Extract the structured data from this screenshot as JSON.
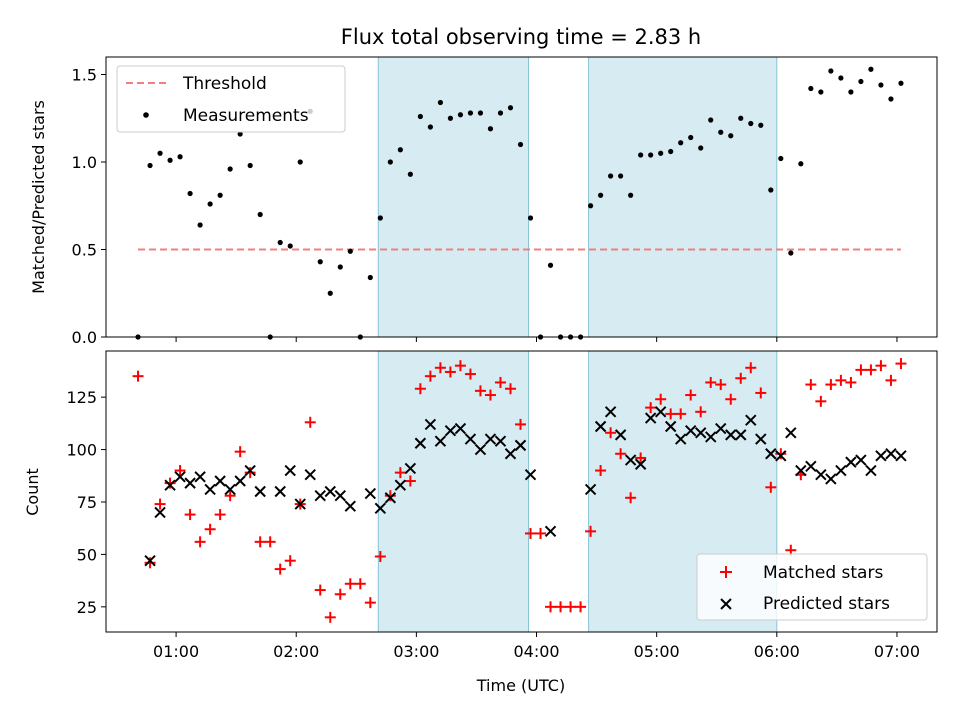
{
  "chart_data": [
    {
      "type": "scatter",
      "title": "Flux total observing time = 2.83 h",
      "ylabel": "Matched/Predicted stars",
      "xlabel": "",
      "x_unit": "time (UTC)",
      "xlim": [
        "00:25",
        "07:20"
      ],
      "ylim": [
        0,
        1.6
      ],
      "yticks": [
        "0.0",
        "0.5",
        "1.0",
        "1.5"
      ],
      "shaded_intervals": [
        [
          "02:41",
          "03:56"
        ],
        [
          "04:26",
          "06:00"
        ]
      ],
      "shade_color": "#add8e6",
      "threshold": {
        "name": "Threshold",
        "value": 0.5,
        "x_range": [
          "00:41",
          "07:02"
        ],
        "color": "#f08080"
      },
      "legend_position": "upper left",
      "series": [
        {
          "name": "Measurements",
          "color": "#000000",
          "points": [
            [
              "00:41",
              0.0
            ],
            [
              "00:47",
              0.98
            ],
            [
              "00:52",
              1.05
            ],
            [
              "00:57",
              1.01
            ],
            [
              "01:02",
              1.03
            ],
            [
              "01:07",
              0.82
            ],
            [
              "01:12",
              0.64
            ],
            [
              "01:17",
              0.76
            ],
            [
              "01:22",
              0.81
            ],
            [
              "01:27",
              0.96
            ],
            [
              "01:32",
              1.16
            ],
            [
              "01:37",
              0.98
            ],
            [
              "01:42",
              0.7
            ],
            [
              "01:47",
              0.0
            ],
            [
              "01:52",
              0.54
            ],
            [
              "01:57",
              0.52
            ],
            [
              "02:02",
              1.0
            ],
            [
              "02:07",
              1.29
            ],
            [
              "02:12",
              0.43
            ],
            [
              "02:17",
              0.25
            ],
            [
              "02:22",
              0.4
            ],
            [
              "02:27",
              0.49
            ],
            [
              "02:32",
              0.0
            ],
            [
              "02:37",
              0.34
            ],
            [
              "02:42",
              0.68
            ],
            [
              "02:47",
              1.0
            ],
            [
              "02:52",
              1.07
            ],
            [
              "02:57",
              0.93
            ],
            [
              "03:02",
              1.26
            ],
            [
              "03:07",
              1.2
            ],
            [
              "03:12",
              1.34
            ],
            [
              "03:17",
              1.25
            ],
            [
              "03:22",
              1.27
            ],
            [
              "03:27",
              1.28
            ],
            [
              "03:32",
              1.28
            ],
            [
              "03:37",
              1.19
            ],
            [
              "03:42",
              1.28
            ],
            [
              "03:47",
              1.31
            ],
            [
              "03:52",
              1.1
            ],
            [
              "03:57",
              0.68
            ],
            [
              "04:02",
              0.0
            ],
            [
              "04:07",
              0.41
            ],
            [
              "04:12",
              0.0
            ],
            [
              "04:17",
              0.0
            ],
            [
              "04:22",
              0.0
            ],
            [
              "04:27",
              0.75
            ],
            [
              "04:32",
              0.81
            ],
            [
              "04:37",
              0.92
            ],
            [
              "04:42",
              0.92
            ],
            [
              "04:47",
              0.81
            ],
            [
              "04:52",
              1.04
            ],
            [
              "04:57",
              1.04
            ],
            [
              "05:02",
              1.05
            ],
            [
              "05:07",
              1.06
            ],
            [
              "05:12",
              1.11
            ],
            [
              "05:17",
              1.14
            ],
            [
              "05:22",
              1.08
            ],
            [
              "05:27",
              1.24
            ],
            [
              "05:32",
              1.17
            ],
            [
              "05:37",
              1.15
            ],
            [
              "05:42",
              1.25
            ],
            [
              "05:47",
              1.22
            ],
            [
              "05:52",
              1.21
            ],
            [
              "05:57",
              0.84
            ],
            [
              "06:02",
              1.02
            ],
            [
              "06:07",
              0.48
            ],
            [
              "06:12",
              0.99
            ],
            [
              "06:17",
              1.42
            ],
            [
              "06:22",
              1.4
            ],
            [
              "06:27",
              1.52
            ],
            [
              "06:32",
              1.48
            ],
            [
              "06:37",
              1.4
            ],
            [
              "06:42",
              1.46
            ],
            [
              "06:47",
              1.53
            ],
            [
              "06:52",
              1.44
            ],
            [
              "06:57",
              1.36
            ],
            [
              "07:02",
              1.45
            ]
          ]
        }
      ]
    },
    {
      "type": "scatter",
      "title": "",
      "ylabel": "Count",
      "xlabel": "Time (UTC)",
      "x_unit": "time (UTC)",
      "xlim": [
        "00:25",
        "07:20"
      ],
      "ylim": [
        13,
        147
      ],
      "yticks": [
        "25",
        "50",
        "75",
        "100",
        "125"
      ],
      "xticks": [
        "01:00",
        "02:00",
        "03:00",
        "04:00",
        "05:00",
        "06:00",
        "07:00"
      ],
      "shaded_intervals": [
        [
          "02:41",
          "03:56"
        ],
        [
          "04:26",
          "06:00"
        ]
      ],
      "shade_color": "#add8e6",
      "legend_position": "lower right",
      "series": [
        {
          "name": "Matched stars",
          "color": "#ff0000",
          "marker": "+",
          "points": [
            [
              "00:41",
              135
            ],
            [
              "00:47",
              46
            ],
            [
              "00:52",
              74
            ],
            [
              "00:57",
              84
            ],
            [
              "01:02",
              90
            ],
            [
              "01:07",
              69
            ],
            [
              "01:12",
              56
            ],
            [
              "01:17",
              62
            ],
            [
              "01:22",
              69
            ],
            [
              "01:27",
              78
            ],
            [
              "01:32",
              99
            ],
            [
              "01:37",
              89
            ],
            [
              "01:42",
              56
            ],
            [
              "01:47",
              56
            ],
            [
              "01:52",
              43
            ],
            [
              "01:57",
              47
            ],
            [
              "02:02",
              74
            ],
            [
              "02:07",
              113
            ],
            [
              "02:12",
              33
            ],
            [
              "02:17",
              20
            ],
            [
              "02:22",
              31
            ],
            [
              "02:27",
              36
            ],
            [
              "02:32",
              36
            ],
            [
              "02:37",
              27
            ],
            [
              "02:42",
              49
            ],
            [
              "02:47",
              78
            ],
            [
              "02:52",
              89
            ],
            [
              "02:57",
              85
            ],
            [
              "03:02",
              129
            ],
            [
              "03:07",
              135
            ],
            [
              "03:12",
              139
            ],
            [
              "03:17",
              137
            ],
            [
              "03:22",
              140
            ],
            [
              "03:27",
              136
            ],
            [
              "03:32",
              128
            ],
            [
              "03:37",
              126
            ],
            [
              "03:42",
              132
            ],
            [
              "03:47",
              129
            ],
            [
              "03:52",
              112
            ],
            [
              "03:57",
              60
            ],
            [
              "04:02",
              60
            ],
            [
              "04:07",
              25
            ],
            [
              "04:12",
              25
            ],
            [
              "04:17",
              25
            ],
            [
              "04:22",
              25
            ],
            [
              "04:27",
              61
            ],
            [
              "04:32",
              90
            ],
            [
              "04:37",
              108
            ],
            [
              "04:42",
              98
            ],
            [
              "04:47",
              77
            ],
            [
              "04:52",
              96
            ],
            [
              "04:57",
              120
            ],
            [
              "05:02",
              124
            ],
            [
              "05:07",
              117
            ],
            [
              "05:12",
              117
            ],
            [
              "05:17",
              126
            ],
            [
              "05:22",
              118
            ],
            [
              "05:27",
              132
            ],
            [
              "05:32",
              131
            ],
            [
              "05:37",
              124
            ],
            [
              "05:42",
              134
            ],
            [
              "05:47",
              139
            ],
            [
              "05:52",
              127
            ],
            [
              "05:57",
              82
            ],
            [
              "06:02",
              98
            ],
            [
              "06:07",
              52
            ],
            [
              "06:12",
              88
            ],
            [
              "06:17",
              131
            ],
            [
              "06:22",
              123
            ],
            [
              "06:27",
              131
            ],
            [
              "06:32",
              133
            ],
            [
              "06:37",
              132
            ],
            [
              "06:42",
              138
            ],
            [
              "06:47",
              138
            ],
            [
              "06:52",
              140
            ],
            [
              "06:57",
              133
            ],
            [
              "07:02",
              141
            ]
          ]
        },
        {
          "name": "Predicted stars",
          "color": "#000000",
          "marker": "x",
          "points": [
            [
              "00:47",
              47
            ],
            [
              "00:52",
              70
            ],
            [
              "00:57",
              83
            ],
            [
              "01:02",
              87
            ],
            [
              "01:07",
              84
            ],
            [
              "01:12",
              87
            ],
            [
              "01:17",
              81
            ],
            [
              "01:22",
              85
            ],
            [
              "01:27",
              81
            ],
            [
              "01:32",
              85
            ],
            [
              "01:37",
              90
            ],
            [
              "01:42",
              80
            ],
            [
              "01:52",
              80
            ],
            [
              "01:57",
              90
            ],
            [
              "02:02",
              74
            ],
            [
              "02:07",
              88
            ],
            [
              "02:12",
              78
            ],
            [
              "02:17",
              80
            ],
            [
              "02:22",
              78
            ],
            [
              "02:27",
              73
            ],
            [
              "02:37",
              79
            ],
            [
              "02:42",
              72
            ],
            [
              "02:47",
              77
            ],
            [
              "02:52",
              83
            ],
            [
              "02:57",
              91
            ],
            [
              "03:02",
              103
            ],
            [
              "03:07",
              112
            ],
            [
              "03:12",
              104
            ],
            [
              "03:17",
              109
            ],
            [
              "03:22",
              110
            ],
            [
              "03:27",
              105
            ],
            [
              "03:32",
              100
            ],
            [
              "03:37",
              105
            ],
            [
              "03:42",
              104
            ],
            [
              "03:47",
              98
            ],
            [
              "03:52",
              102
            ],
            [
              "03:57",
              88
            ],
            [
              "04:07",
              61
            ],
            [
              "04:27",
              81
            ],
            [
              "04:32",
              111
            ],
            [
              "04:37",
              118
            ],
            [
              "04:42",
              107
            ],
            [
              "04:47",
              95
            ],
            [
              "04:52",
              93
            ],
            [
              "04:57",
              115
            ],
            [
              "05:02",
              118
            ],
            [
              "05:07",
              111
            ],
            [
              "05:12",
              105
            ],
            [
              "05:17",
              109
            ],
            [
              "05:22",
              108
            ],
            [
              "05:27",
              106
            ],
            [
              "05:32",
              110
            ],
            [
              "05:37",
              107
            ],
            [
              "05:42",
              107
            ],
            [
              "05:47",
              114
            ],
            [
              "05:52",
              105
            ],
            [
              "05:57",
              98
            ],
            [
              "06:02",
              97
            ],
            [
              "06:07",
              108
            ],
            [
              "06:12",
              90
            ],
            [
              "06:17",
              92
            ],
            [
              "06:22",
              88
            ],
            [
              "06:27",
              86
            ],
            [
              "06:32",
              90
            ],
            [
              "06:37",
              94
            ],
            [
              "06:42",
              95
            ],
            [
              "06:47",
              90
            ],
            [
              "06:52",
              97
            ],
            [
              "06:57",
              98
            ],
            [
              "07:02",
              97
            ]
          ]
        }
      ]
    }
  ]
}
